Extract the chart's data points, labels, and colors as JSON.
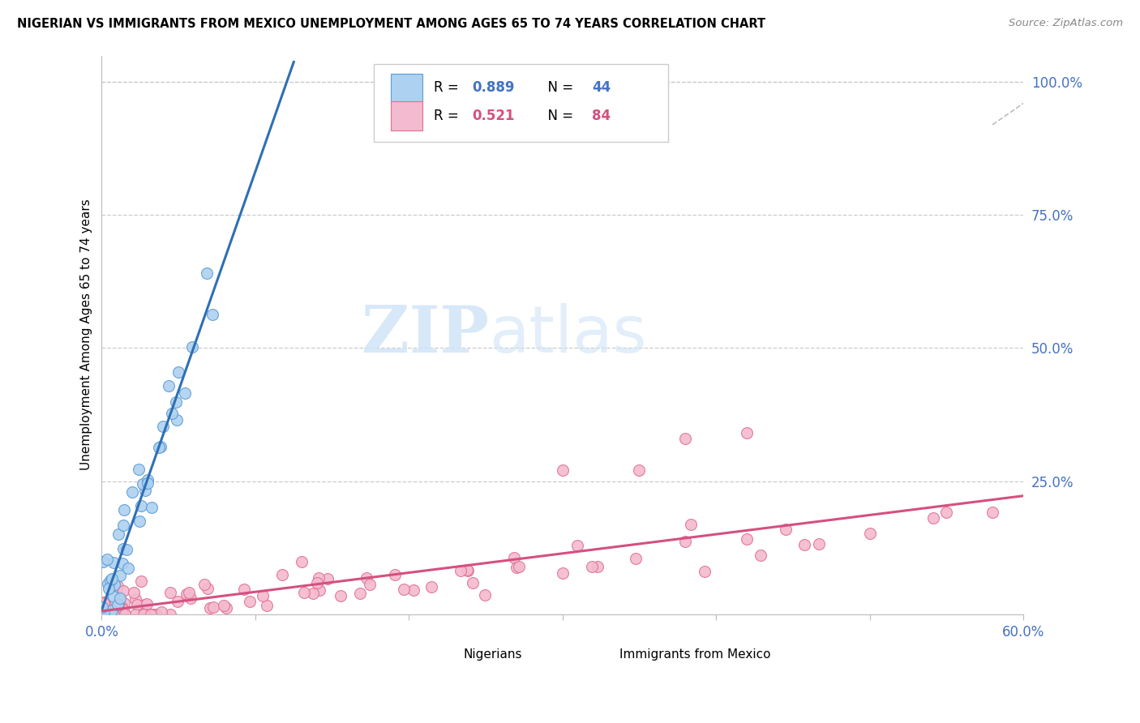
{
  "title": "NIGERIAN VS IMMIGRANTS FROM MEXICO UNEMPLOYMENT AMONG AGES 65 TO 74 YEARS CORRELATION CHART",
  "source": "Source: ZipAtlas.com",
  "ylabel": "Unemployment Among Ages 65 to 74 years",
  "xlim": [
    0.0,
    0.6
  ],
  "ylim": [
    0.0,
    1.05
  ],
  "nigerian_R": 0.889,
  "nigerian_N": 44,
  "mexico_R": 0.521,
  "mexico_N": 84,
  "nigerian_color": "#ADD1F0",
  "nigerian_edge_color": "#5B9BD5",
  "nigerian_line_color": "#2E6FB5",
  "mexico_color": "#F4BACF",
  "mexico_edge_color": "#E07090",
  "mexico_line_color": "#D45080",
  "ytick_color": "#4472C4",
  "xtick_color": "#4472C4",
  "grid_color": "#CCCCCC",
  "watermark_color": "#D0E4F7"
}
